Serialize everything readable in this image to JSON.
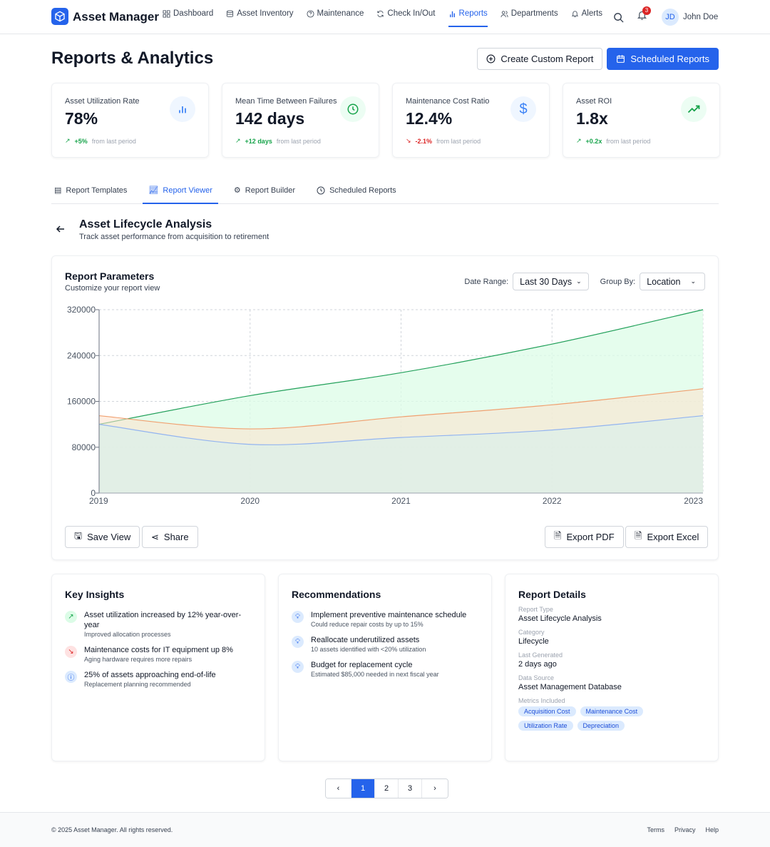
{
  "nav": {
    "brand": "Asset Manager",
    "items": [
      {
        "label": "Dashboard",
        "icon": "grid-icon"
      },
      {
        "label": "Asset Inventory",
        "icon": "database-icon"
      },
      {
        "label": "Maintenance",
        "icon": "help-circle-icon"
      },
      {
        "label": "Check In/Out",
        "icon": "refresh-icon"
      },
      {
        "label": "Reports",
        "icon": "bar-chart-icon",
        "active": true
      },
      {
        "label": "Departments",
        "icon": "users-icon"
      },
      {
        "label": "Alerts",
        "icon": "bell-icon"
      }
    ],
    "notification_count": "3",
    "user_initials": "JD",
    "user_name": "John Doe"
  },
  "header": {
    "title": "Reports & Analytics",
    "create_label": "Create Custom Report",
    "scheduled_label": "Scheduled Reports"
  },
  "stats": [
    {
      "label": "Asset Utilization Rate",
      "value": "78%",
      "change": "+5%",
      "suffix": "from last period",
      "trend": "up",
      "icon": "bar-chart-icon",
      "color": "#3b82f6"
    },
    {
      "label": "Mean Time Between Failures",
      "value": "142 days",
      "change": "+12 days",
      "suffix": "from last period",
      "trend": "up",
      "icon": "clock-icon",
      "color": "#16a34a"
    },
    {
      "label": "Maintenance Cost Ratio",
      "value": "12.4%",
      "change": "-2.1%",
      "suffix": "from last period",
      "trend": "down",
      "icon": "dollar-icon",
      "color": "#3b82f6"
    },
    {
      "label": "Asset ROI",
      "value": "1.8x",
      "change": "+0.2x",
      "suffix": "from last period",
      "trend": "up",
      "icon": "trending-up-icon",
      "color": "#16a34a"
    }
  ],
  "tabs": [
    {
      "label": "Report Templates"
    },
    {
      "label": "Report Viewer",
      "active": true
    },
    {
      "label": "Report Builder"
    },
    {
      "label": "Scheduled Reports"
    }
  ],
  "report": {
    "title": "Asset Lifecycle Analysis",
    "subtitle": "Track asset performance from acquisition to retirement"
  },
  "params": {
    "title": "Report Parameters",
    "subtitle": "Customize your report view",
    "date_range_label": "Date Range:",
    "date_range_value": "Last 30 Days",
    "group_by_label": "Group By:",
    "group_by_value": "Location"
  },
  "chart_data": {
    "type": "area",
    "categories": [
      "2019",
      "2020",
      "2021",
      "2022",
      "2023"
    ],
    "series": [
      {
        "values": [
          120000,
          170000,
          210000,
          260000,
          320000
        ],
        "color": "#22a05a"
      },
      {
        "values": [
          135000,
          112000,
          133000,
          154000,
          182000
        ],
        "color": "#f0a070"
      },
      {
        "values": [
          120000,
          85000,
          97000,
          110000,
          135000
        ],
        "color": "#93b4f0"
      }
    ],
    "yticks": [
      "0",
      "80000",
      "160000",
      "240000",
      "320000"
    ],
    "ylim": [
      0,
      320000
    ],
    "grid": true
  },
  "actions": {
    "save": "Save View",
    "share": "Share",
    "export_pdf": "Export PDF",
    "export_excel": "Export Excel"
  },
  "insights": {
    "title": "Key Insights",
    "items": [
      {
        "title": "Asset utilization increased by 12% year-over-year",
        "sub": "Improved allocation processes",
        "icon": "trending-up-icon"
      },
      {
        "title": "Maintenance costs for IT equipment up 8%",
        "sub": "Aging hardware requires more repairs",
        "icon": "trending-down-icon"
      },
      {
        "title": "25% of assets approaching end-of-life",
        "sub": "Replacement planning recommended",
        "icon": "alert-circle-icon"
      }
    ]
  },
  "recommendations": {
    "title": "Recommendations",
    "items": [
      {
        "title": "Implement preventive maintenance schedule",
        "sub": "Could reduce repair costs by up to 15%"
      },
      {
        "title": "Reallocate underutilized assets",
        "sub": "10 assets identified with <20% utilization"
      },
      {
        "title": "Budget for replacement cycle",
        "sub": "Estimated $85,000 needed in next fiscal year"
      }
    ]
  },
  "details": {
    "title": "Report Details",
    "fields": [
      {
        "label": "Report Type",
        "value": "Asset Lifecycle Analysis"
      },
      {
        "label": "Category",
        "value": "Lifecycle"
      },
      {
        "label": "Last Generated",
        "value": "2 days ago"
      },
      {
        "label": "Data Source",
        "value": "Asset Management Database"
      }
    ],
    "metrics_label": "Metrics Included",
    "metrics": [
      "Acquisition Cost",
      "Maintenance Cost",
      "Utilization Rate",
      "Depreciation"
    ]
  },
  "pagination": {
    "pages": [
      "1",
      "2",
      "3"
    ],
    "current": "1"
  },
  "footer": {
    "copyright": "© 2025 Asset Manager. All rights reserved.",
    "links": [
      "Terms",
      "Privacy",
      "Help"
    ]
  }
}
